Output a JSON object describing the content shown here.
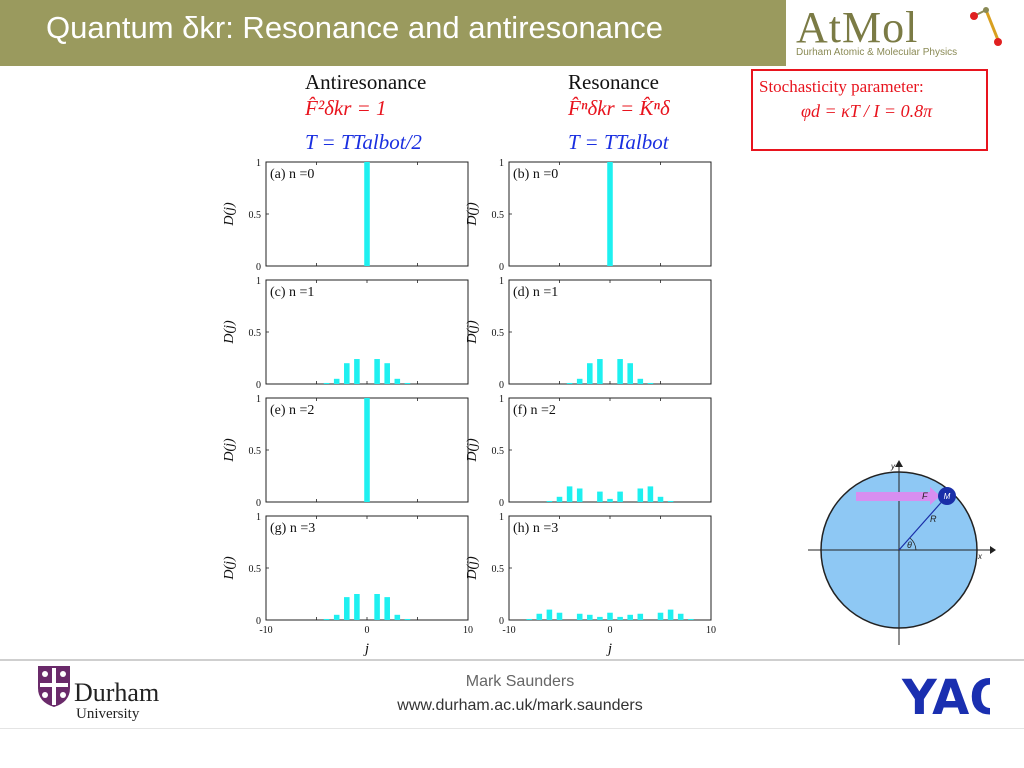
{
  "header": {
    "title": "Quantum δkr: Resonance and antiresonance",
    "bg_color": "#9a9a5e",
    "logo_text": "AtMol",
    "logo_subtitle": "Durham Atomic & Molecular Physics"
  },
  "columns": {
    "left": {
      "heading": "Antiresonance",
      "eq1": "F̂²δkr = 1",
      "eq2": "T = TTalbot/2"
    },
    "right": {
      "heading": "Resonance",
      "eq1": "F̂ⁿδkr = K̂ⁿδ",
      "eq2": "T = TTalbot"
    }
  },
  "stochasticity": {
    "title": "Stochasticity parameter:",
    "equation": "φd = κT / I = 0.8π"
  },
  "chart_data": {
    "type": "bar",
    "bar_color": "#1ef0f0",
    "ylabel": "D(j)",
    "xlabel": "j",
    "xlim": [
      -10,
      10
    ],
    "ylim": [
      0,
      1
    ],
    "x_ticks": [
      "-10",
      "0",
      "10"
    ],
    "y_ticks": [
      "0",
      "0.5",
      "1"
    ],
    "panels": [
      {
        "label": "(a) n =0",
        "x": [
          0
        ],
        "values": [
          1.0
        ]
      },
      {
        "label": "(b) n =0",
        "x": [
          0
        ],
        "values": [
          1.0
        ]
      },
      {
        "label": "(c) n =1",
        "x": [
          -4,
          -3,
          -2,
          -1,
          1,
          2,
          3,
          4
        ],
        "values": [
          0.01,
          0.05,
          0.2,
          0.24,
          0.24,
          0.2,
          0.05,
          0.01
        ]
      },
      {
        "label": "(d) n =1",
        "x": [
          -4,
          -3,
          -2,
          -1,
          1,
          2,
          3,
          4
        ],
        "values": [
          0.01,
          0.05,
          0.2,
          0.24,
          0.24,
          0.2,
          0.05,
          0.01
        ]
      },
      {
        "label": "(e) n =2",
        "x": [
          0
        ],
        "values": [
          1.0
        ]
      },
      {
        "label": "(f) n =2",
        "x": [
          -6,
          -5,
          -4,
          -3,
          -1,
          0,
          1,
          3,
          4,
          5,
          6
        ],
        "values": [
          0.01,
          0.05,
          0.15,
          0.13,
          0.1,
          0.03,
          0.1,
          0.13,
          0.15,
          0.05,
          0.01
        ]
      },
      {
        "label": "(g) n =3",
        "x": [
          -4,
          -3,
          -2,
          -1,
          1,
          2,
          3,
          4
        ],
        "values": [
          0.01,
          0.05,
          0.22,
          0.25,
          0.25,
          0.22,
          0.05,
          0.01
        ]
      },
      {
        "label": "(h) n =3",
        "x": [
          -8,
          -7,
          -6,
          -5,
          -3,
          -2,
          -1,
          0,
          1,
          2,
          3,
          5,
          6,
          7,
          8
        ],
        "values": [
          0.01,
          0.06,
          0.1,
          0.07,
          0.06,
          0.05,
          0.03,
          0.07,
          0.03,
          0.05,
          0.06,
          0.07,
          0.1,
          0.06,
          0.01
        ]
      }
    ]
  },
  "rotor_diagram": {
    "labels": {
      "y": "y",
      "x": "x",
      "F": "F",
      "M": "M",
      "R": "R",
      "theta": "θ"
    },
    "circle_color": "#8ec8f4",
    "force_color": "#d88ef0"
  },
  "footer": {
    "author": "Mark Saunders",
    "url": "www.durham.ac.uk/mark.saunders",
    "durham_name": "Durham",
    "durham_univ": "University",
    "yao_text": "YAO"
  }
}
